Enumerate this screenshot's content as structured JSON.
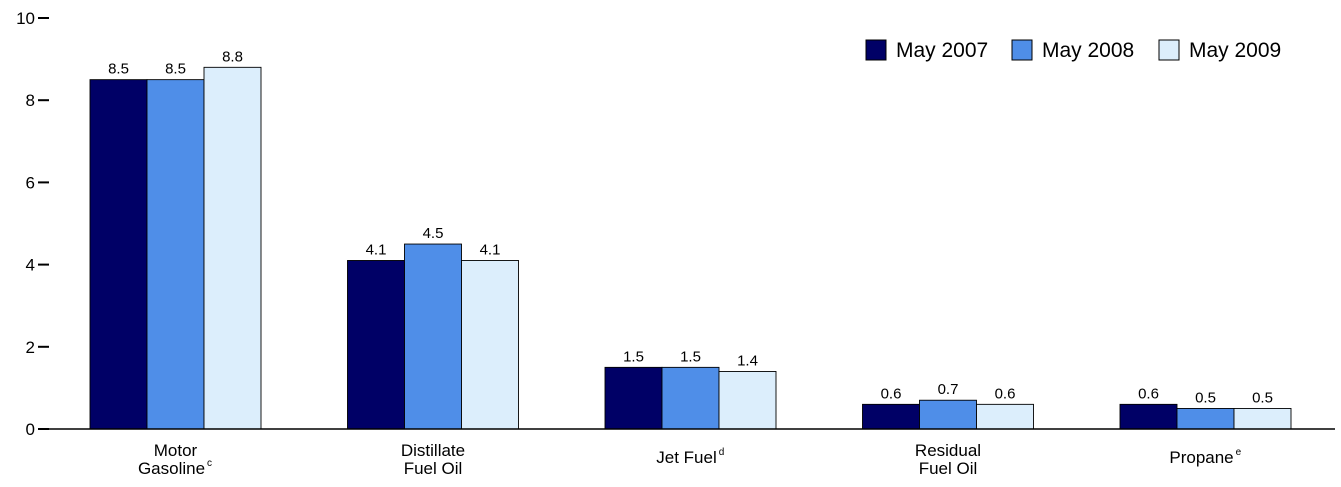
{
  "chart_data": {
    "type": "bar",
    "categories": [
      {
        "lines": [
          "Motor",
          "Gasoline"
        ],
        "sup": "c"
      },
      {
        "lines": [
          "Distillate",
          "Fuel Oil"
        ],
        "sup": ""
      },
      {
        "lines": [
          "Jet Fuel"
        ],
        "sup": "d"
      },
      {
        "lines": [
          "Residual",
          "Fuel Oil"
        ],
        "sup": ""
      },
      {
        "lines": [
          "Propane"
        ],
        "sup": "e"
      }
    ],
    "series": [
      {
        "name": "May 2007",
        "color": "#000066",
        "values": [
          8.5,
          4.1,
          1.5,
          0.6,
          0.6
        ]
      },
      {
        "name": "May 2008",
        "color": "#4f8ee8",
        "values": [
          8.5,
          4.5,
          1.5,
          0.7,
          0.5
        ]
      },
      {
        "name": "May 2009",
        "color": "#dceefc",
        "values": [
          8.8,
          4.1,
          1.4,
          0.6,
          0.5
        ]
      }
    ],
    "data_labels": [
      [
        "8.5",
        "4.1",
        "1.5",
        "0.6",
        "0.6"
      ],
      [
        "8.5",
        "4.5",
        "1.5",
        "0.7",
        "0.5"
      ],
      [
        "8.8",
        "4.1",
        "1.4",
        "0.6",
        "0.5"
      ]
    ],
    "yticks": [
      0,
      2,
      4,
      6,
      8,
      10
    ],
    "ylim": [
      0,
      10
    ],
    "legend_position": "top-right",
    "grid": false
  }
}
